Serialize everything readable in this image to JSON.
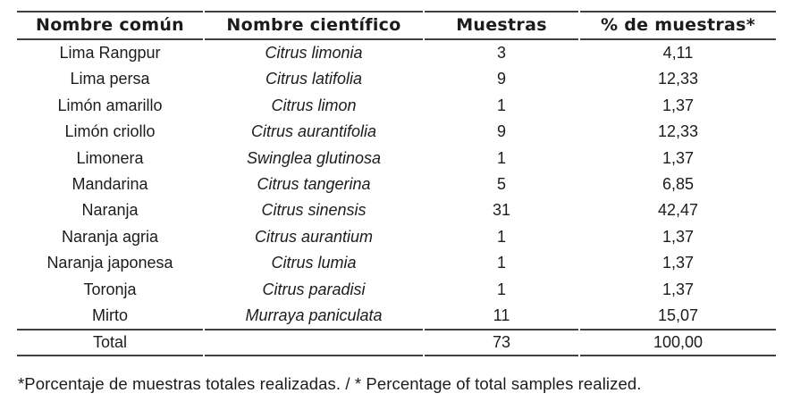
{
  "colors": {
    "text": "#1c1c1c",
    "line": "#3f3f3f",
    "background": "#ffffff"
  },
  "table": {
    "columns": [
      "Nombre común",
      "Nombre científico",
      "Muestras",
      "% de muestras*"
    ],
    "rows": [
      {
        "common": "Lima Rangpur",
        "scientific": "Citrus limonia",
        "samples": "3",
        "pct": "4,11"
      },
      {
        "common": "Lima persa",
        "scientific": "Citrus latifolia",
        "samples": "9",
        "pct": "12,33"
      },
      {
        "common": "Limón amarillo",
        "scientific": "Citrus limon",
        "samples": "1",
        "pct": "1,37"
      },
      {
        "common": "Limón criollo",
        "scientific": "Citrus aurantifolia",
        "samples": "9",
        "pct": "12,33"
      },
      {
        "common": "Limonera",
        "scientific": "Swinglea glutinosa",
        "samples": "1",
        "pct": "1,37"
      },
      {
        "common": "Mandarina",
        "scientific": "Citrus tangerina",
        "samples": "5",
        "pct": "6,85"
      },
      {
        "common": "Naranja",
        "scientific": "Citrus sinensis",
        "samples": "31",
        "pct": "42,47"
      },
      {
        "common": "Naranja agria",
        "scientific": "Citrus aurantium",
        "samples": "1",
        "pct": "1,37"
      },
      {
        "common": "Naranja japonesa",
        "scientific": "Citrus lumia",
        "samples": "1",
        "pct": "1,37"
      },
      {
        "common": "Toronja",
        "scientific": "Citrus paradisi",
        "samples": "1",
        "pct": "1,37"
      },
      {
        "common": "Mirto",
        "scientific": "Murraya paniculata",
        "samples": "11",
        "pct": "15,07"
      }
    ],
    "total": {
      "label": "Total",
      "scientific": "",
      "samples": "73",
      "pct": "100,00"
    }
  },
  "footnote": "*Porcentaje de muestras totales realizadas. / * Percentage of total samples realized."
}
